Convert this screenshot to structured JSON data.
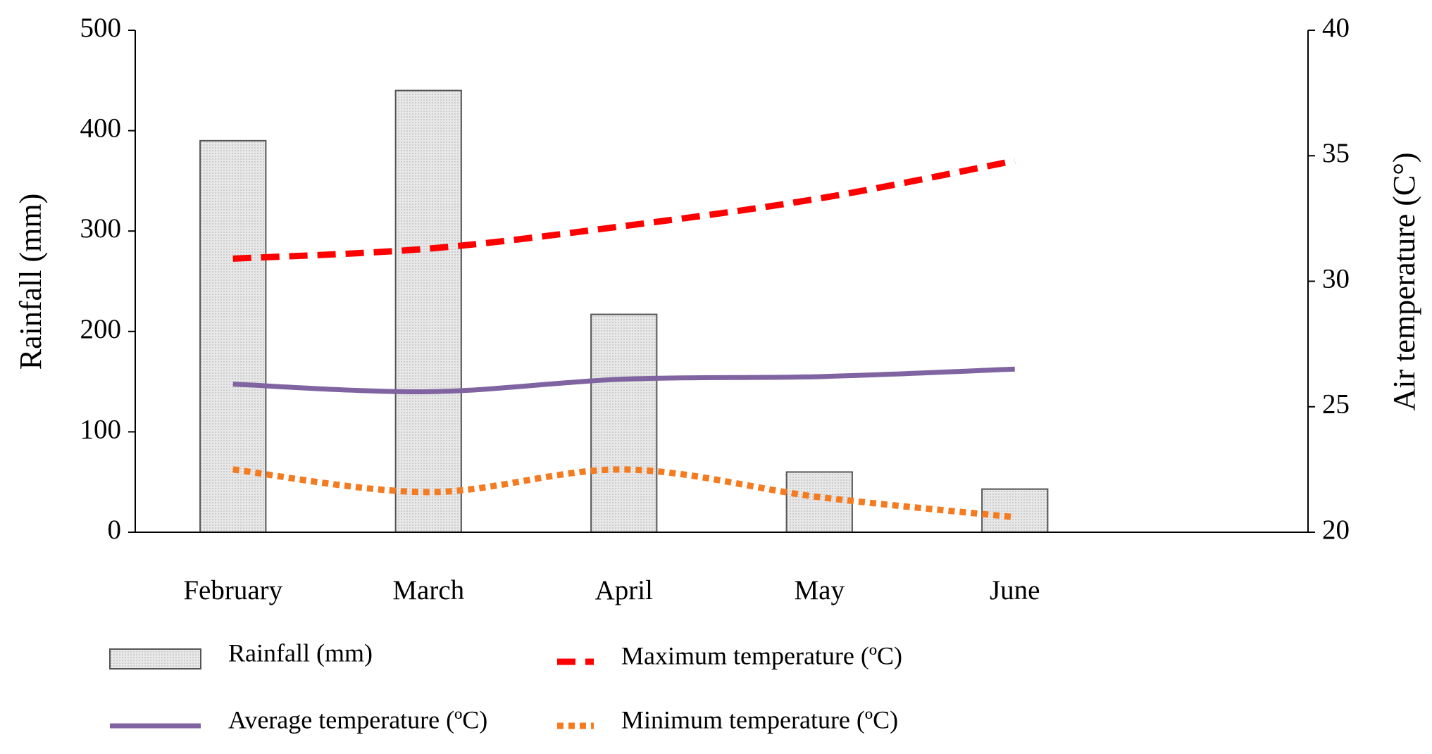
{
  "chart_data": {
    "type": "bar-line",
    "categories": [
      "February",
      "March",
      "April",
      "May",
      "June",
      null
    ],
    "series": [
      {
        "name": "Rainfall (mm)",
        "type": "bar",
        "color": "#dedede",
        "values": [
          390,
          440,
          217,
          60,
          43,
          null
        ]
      },
      {
        "name": "Average temperature (ºC)",
        "type": "line",
        "axis": "y2",
        "color": "#8064a2",
        "line_style": "solid",
        "values": [
          25.9,
          25.6,
          26.1,
          26.2,
          26.5,
          null
        ]
      },
      {
        "name": "Maximum temperature (ºC)",
        "type": "line",
        "axis": "y2",
        "color": "#ff0000",
        "line_style": "dashed",
        "values": [
          30.9,
          31.3,
          32.2,
          33.3,
          34.8,
          null
        ]
      },
      {
        "name": "Minimum temperature (ºC)",
        "type": "line",
        "axis": "y2",
        "color": "#f47b20",
        "line_style": "dotted",
        "values": [
          22.5,
          21.6,
          22.5,
          21.4,
          20.6,
          null
        ]
      }
    ],
    "ylabel": "Rainfall (mm)",
    "y2label": "Air temperature (C°)",
    "ylim": [
      0,
      500
    ],
    "yticks": [
      0,
      100,
      200,
      300,
      400,
      500
    ],
    "y2lim": [
      20,
      40
    ],
    "y2ticks": [
      20,
      25,
      30,
      35,
      40
    ],
    "legend": "bottom"
  }
}
